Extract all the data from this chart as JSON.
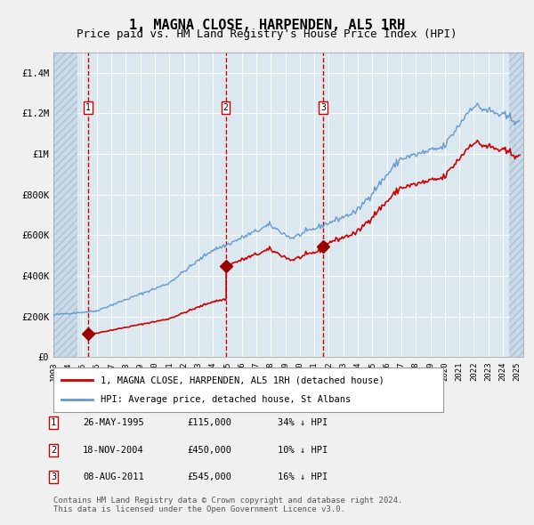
{
  "title": "1, MAGNA CLOSE, HARPENDEN, AL5 1RH",
  "subtitle": "Price paid vs. HM Land Registry's House Price Index (HPI)",
  "title_fontsize": 11,
  "subtitle_fontsize": 9,
  "legend_line1": "1, MAGNA CLOSE, HARPENDEN, AL5 1RH (detached house)",
  "legend_line2": "HPI: Average price, detached house, St Albans",
  "sale_dates": [
    "1995-05-26",
    "2004-11-18",
    "2011-08-08"
  ],
  "sale_prices": [
    115000,
    450000,
    545000
  ],
  "sale_labels": [
    "26-MAY-1995",
    "18-NOV-2004",
    "08-AUG-2011"
  ],
  "sale_price_labels": [
    "£115,000",
    "£450,000",
    "£545,000"
  ],
  "sale_hpi_labels": [
    "34% ↓ HPI",
    "10% ↓ HPI",
    "16% ↓ HPI"
  ],
  "sale_numbers": [
    "1",
    "2",
    "3"
  ],
  "y_ticks": [
    0,
    200000,
    400000,
    600000,
    800000,
    1000000,
    1200000,
    1400000
  ],
  "y_tick_labels": [
    "£0",
    "£200K",
    "£400K",
    "£600K",
    "£800K",
    "£1M",
    "£1.2M",
    "£1.4M"
  ],
  "ylim": [
    0,
    1500000
  ],
  "x_start_year": 1993,
  "x_end_year": 2025,
  "hatch_color": "#c8d8e8",
  "bg_color": "#dce8f0",
  "plot_bg_color": "#dce8f0",
  "grid_color": "#ffffff",
  "red_line_color": "#cc0000",
  "blue_line_color": "#6699cc",
  "marker_color": "#990000",
  "sale_vline_color": "#cc0000",
  "footnote": "Contains HM Land Registry data © Crown copyright and database right 2024.\nThis data is licensed under the Open Government Licence v3.0."
}
